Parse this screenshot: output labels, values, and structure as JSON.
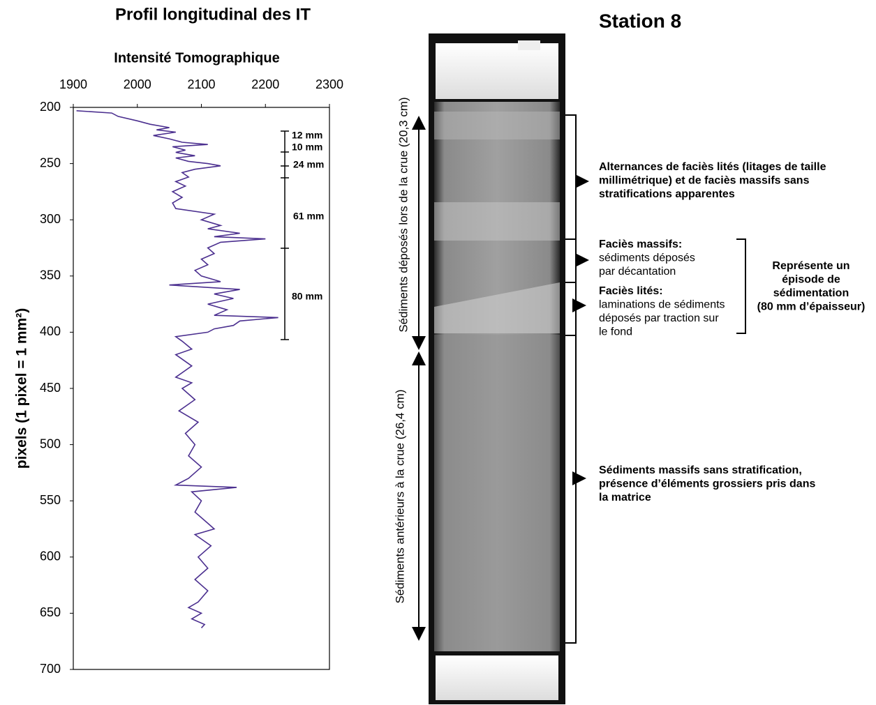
{
  "chart_data": {
    "type": "line",
    "title": "Profil longitudinal des IT",
    "x_label": "Intensité Tomographique",
    "y_label": "pixels (1 pixel = 1 mm²)",
    "xlim": [
      1900,
      2300
    ],
    "xticks": [
      1900,
      2000,
      2100,
      2200,
      2300
    ],
    "ylim": [
      200,
      700
    ],
    "yticks": [
      200,
      250,
      300,
      350,
      400,
      450,
      500,
      550,
      600,
      650,
      700
    ],
    "y_inverted": true,
    "color": "#4b2f8f",
    "x": [
      1905,
      1960,
      1970,
      2000,
      2020,
      2050,
      2030,
      2060,
      2025,
      2050,
      2070,
      2110,
      2055,
      2075,
      2060,
      2090,
      2060,
      2080,
      2110,
      2130,
      2090,
      2070,
      2080,
      2060,
      2075,
      2055,
      2070,
      2055,
      2060,
      2120,
      2100,
      2130,
      2110,
      2160,
      2120,
      2200,
      2130,
      2110,
      2120,
      2100,
      2110,
      2090,
      2100,
      2130,
      2050,
      2160,
      2120,
      2150,
      2110,
      2140,
      2120,
      2220,
      2160,
      2150,
      2120,
      2110,
      2060,
      2070,
      2085,
      2060,
      2085,
      2060,
      2085,
      2070,
      2090,
      2065,
      2095,
      2075,
      2090,
      2080,
      2100,
      2080,
      2060,
      2155,
      2085,
      2100,
      2090,
      2110,
      2120,
      2090,
      2115,
      2095,
      2110,
      2090,
      2110,
      2095,
      2080,
      2100,
      2085,
      2105,
      2100
    ],
    "y": [
      203,
      205,
      208,
      212,
      215,
      218,
      220,
      222,
      225,
      228,
      231,
      233,
      235,
      238,
      240,
      243,
      245,
      248,
      250,
      252,
      255,
      258,
      262,
      266,
      270,
      275,
      280,
      285,
      290,
      295,
      300,
      305,
      308,
      312,
      315,
      317,
      320,
      325,
      330,
      335,
      340,
      345,
      350,
      355,
      358,
      362,
      366,
      370,
      375,
      380,
      385,
      387,
      390,
      394,
      397,
      400,
      404,
      408,
      415,
      420,
      430,
      440,
      445,
      450,
      460,
      470,
      480,
      490,
      500,
      510,
      520,
      530,
      536,
      538,
      542,
      550,
      560,
      570,
      575,
      580,
      590,
      600,
      610,
      620,
      630,
      640,
      645,
      650,
      655,
      660,
      663
    ],
    "annotations": [
      "12 mm",
      "10 mm",
      "24 mm",
      "61 mm",
      "80 mm"
    ]
  },
  "diagram": {
    "title": "Station 8",
    "left_labels": [
      "Sédiments déposés lors de la crue (20,3 cm)",
      "Sédiments antérieurs à la crue (26,4 cm)"
    ],
    "notes": [
      {
        "lines": [
          "Alternances de faciès lités (litages de taille",
          "millimétrique) et de faciès massifs sans",
          "stratifications apparentes"
        ]
      },
      {
        "heading": "Faciès massifs:",
        "lines": [
          "sédiments déposés",
          "par décantation"
        ]
      },
      {
        "heading": "Faciès lités:",
        "lines": [
          "laminations de sédiments",
          "déposés par traction sur",
          "le fond"
        ]
      },
      {
        "lines": [
          "Sédiments massifs sans stratification,",
          "présence d’éléments grossiers pris dans",
          "la matrice"
        ]
      }
    ],
    "episode": [
      "Représente un",
      "épisode de",
      "sédimentation",
      "(80 mm d’épaisseur)"
    ]
  }
}
